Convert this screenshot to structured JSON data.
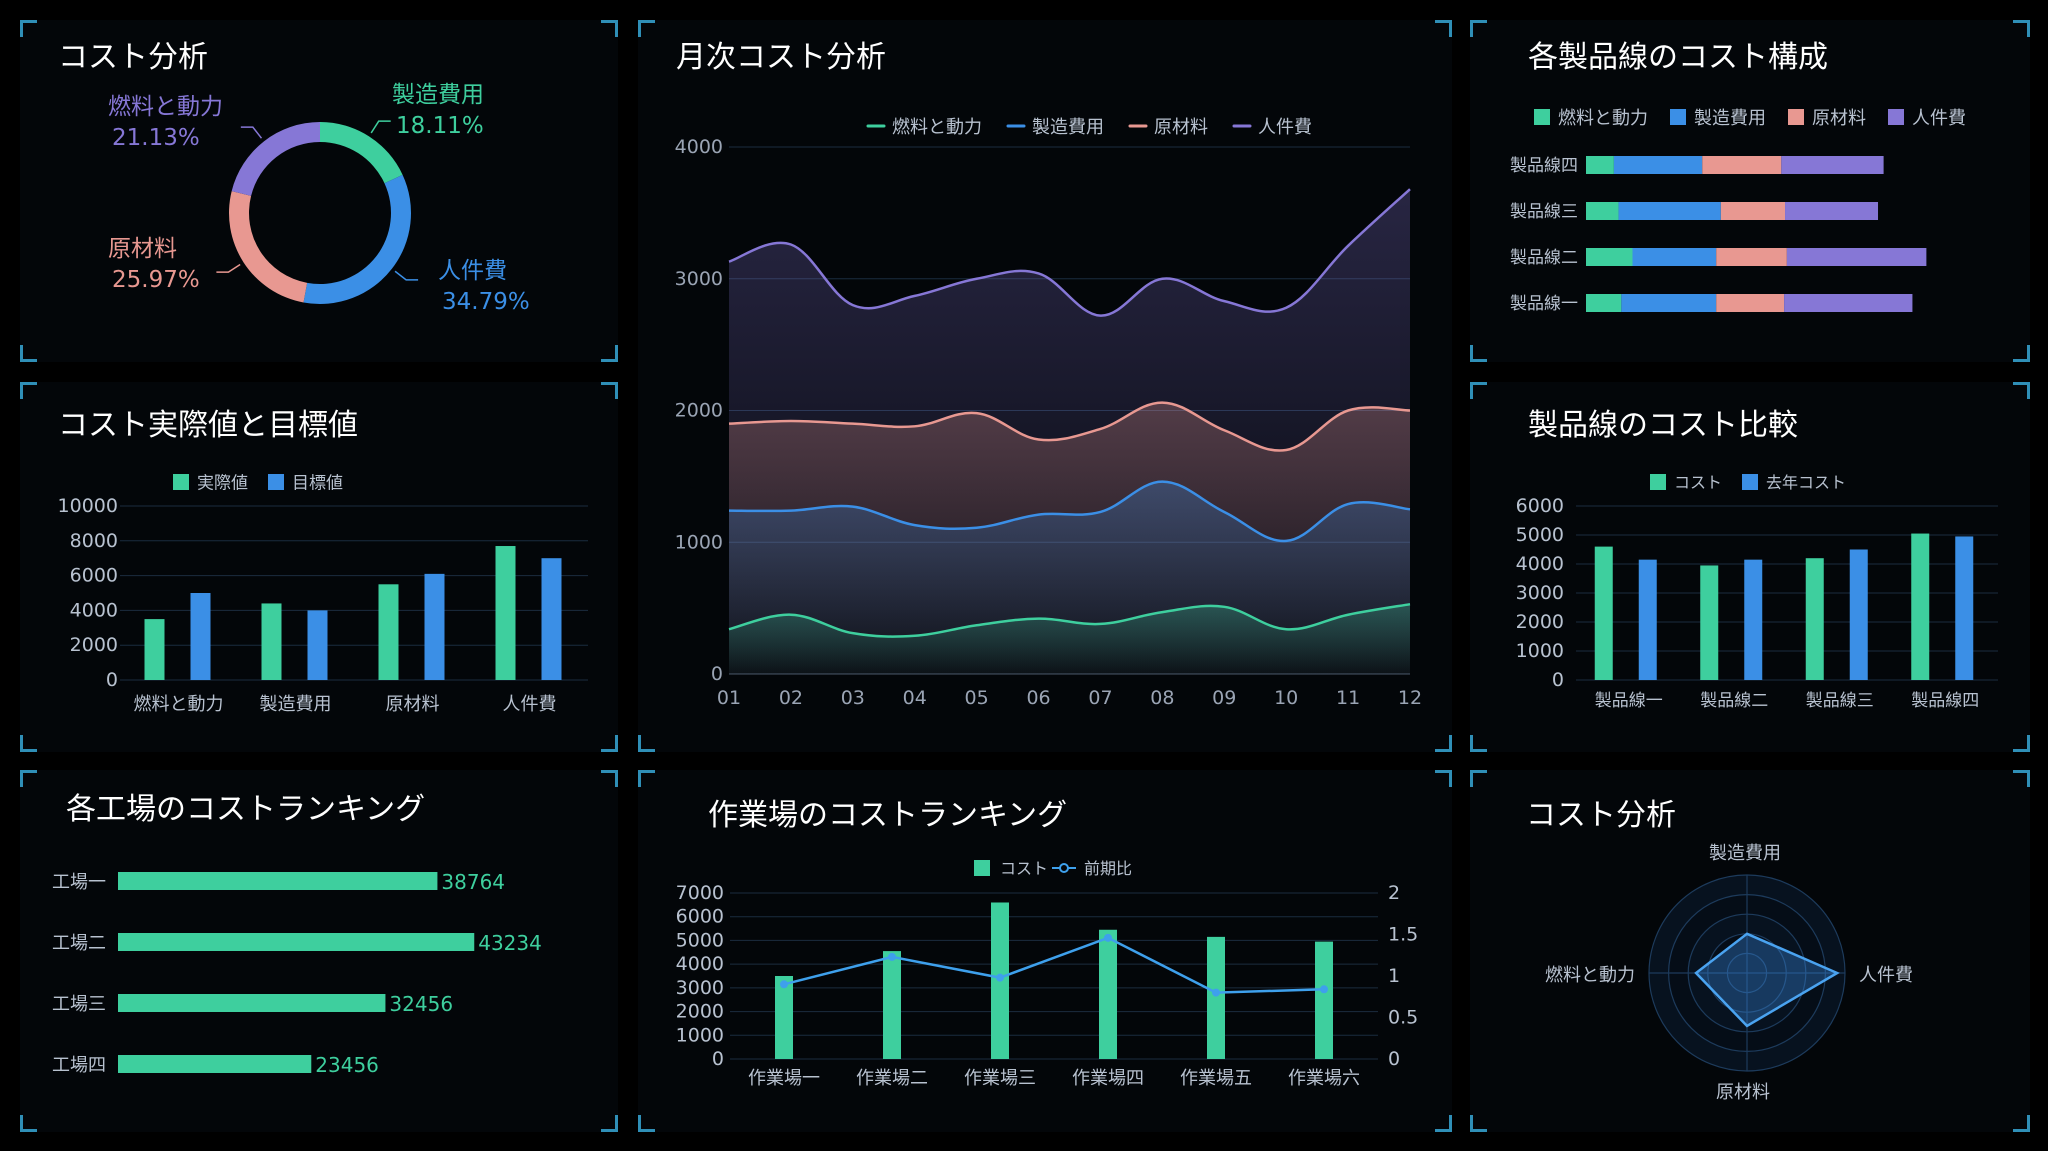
{
  "colors": {
    "fuel": "#3ecf9e",
    "mfg": "#3b8fe6",
    "raw": "#e89891",
    "labor": "#8677d6",
    "line": "#3ea0ec"
  },
  "panels": {
    "p1": {
      "title": "コスト分析"
    },
    "p2": {
      "title": "月次コスト分析"
    },
    "p3": {
      "title": "各製品線のコスト構成"
    },
    "p4": {
      "title": "コスト実際値と目標値"
    },
    "p5": {
      "title": "製品線のコスト比較"
    },
    "p6": {
      "title": "各工場のコストランキング"
    },
    "p7": {
      "title": "作業場のコストランキング"
    },
    "p8": {
      "title": "コスト分析"
    }
  },
  "chart_data": [
    {
      "id": "donut",
      "type": "pie",
      "title": "コスト分析",
      "slices": [
        {
          "name": "製造費用",
          "value": 18.11,
          "label": "18.11%"
        },
        {
          "name": "人件費",
          "value": 34.79,
          "label": "34.79%"
        },
        {
          "name": "原材料",
          "value": 25.97,
          "label": "25.97%"
        },
        {
          "name": "燃料と動力",
          "value": 21.13,
          "label": "21.13%"
        }
      ]
    },
    {
      "id": "monthly",
      "type": "area",
      "title": "月次コスト分析",
      "x": [
        "01",
        "02",
        "03",
        "04",
        "05",
        "06",
        "07",
        "08",
        "09",
        "10",
        "11",
        "12"
      ],
      "ylim": [
        0,
        4000
      ],
      "yticks": [
        0,
        1000,
        2000,
        3000,
        4000
      ],
      "series": [
        {
          "name": "燃料と動力",
          "values": [
            340,
            450,
            310,
            290,
            370,
            420,
            380,
            470,
            510,
            340,
            450,
            530
          ]
        },
        {
          "name": "製造費用",
          "values": [
            1240,
            1240,
            1270,
            1130,
            1110,
            1210,
            1230,
            1460,
            1230,
            1010,
            1290,
            1250
          ]
        },
        {
          "name": "原材料",
          "values": [
            1900,
            1920,
            1900,
            1880,
            1980,
            1780,
            1860,
            2060,
            1850,
            1700,
            2000,
            2000
          ]
        },
        {
          "name": "人件費",
          "values": [
            3130,
            3260,
            2800,
            2870,
            3000,
            3040,
            2720,
            3000,
            2830,
            2780,
            3250,
            3680
          ]
        }
      ]
    },
    {
      "id": "composition",
      "type": "bar",
      "orientation": "horizontal-stacked",
      "title": "各製品線のコスト構成",
      "categories": [
        "製品線四",
        "製品線三",
        "製品線二",
        "製品線一"
      ],
      "series": [
        {
          "name": "燃料と動力",
          "values": [
            300,
            350,
            500,
            380
          ]
        },
        {
          "name": "製造費用",
          "values": [
            950,
            1100,
            900,
            1020
          ]
        },
        {
          "name": "原材料",
          "values": [
            850,
            690,
            760,
            730
          ]
        },
        {
          "name": "人件費",
          "values": [
            1100,
            1000,
            1500,
            1380
          ]
        }
      ]
    },
    {
      "id": "actual_target",
      "type": "bar",
      "title": "コスト実際値と目標値",
      "categories": [
        "燃料と動力",
        "製造費用",
        "原材料",
        "人件費"
      ],
      "ylim": [
        0,
        10000
      ],
      "yticks": [
        0,
        2000,
        4000,
        6000,
        8000,
        10000
      ],
      "series": [
        {
          "name": "実際値",
          "values": [
            3500,
            4400,
            5500,
            7700
          ]
        },
        {
          "name": "目標値",
          "values": [
            5000,
            4000,
            6100,
            7000
          ]
        }
      ]
    },
    {
      "id": "product_compare",
      "type": "bar",
      "title": "製品線のコスト比較",
      "categories": [
        "製品線一",
        "製品線二",
        "製品線三",
        "製品線四"
      ],
      "ylim": [
        0,
        6000
      ],
      "yticks": [
        0,
        1000,
        2000,
        3000,
        4000,
        5000,
        6000
      ],
      "series": [
        {
          "name": "コスト",
          "values": [
            4600,
            3950,
            4200,
            5050
          ]
        },
        {
          "name": "去年コスト",
          "values": [
            4150,
            4150,
            4500,
            4950
          ]
        }
      ]
    },
    {
      "id": "factory_rank",
      "type": "bar",
      "orientation": "horizontal",
      "title": "各工場のコストランキング",
      "categories": [
        "工場一",
        "工場二",
        "工場三",
        "工場四"
      ],
      "values": [
        38764,
        43234,
        32456,
        23456
      ],
      "labels": [
        "38764",
        "43234",
        "32456",
        "23456"
      ]
    },
    {
      "id": "workshop_rank",
      "type": "bar",
      "title": "作業場のコストランキング",
      "categories": [
        "作業場一",
        "作業場二",
        "作業場三",
        "作業場四",
        "作業場五",
        "作業場六"
      ],
      "ylim": [
        0,
        7000
      ],
      "yticks": [
        0,
        1000,
        2000,
        3000,
        4000,
        5000,
        6000,
        7000
      ],
      "y2lim": [
        0,
        2
      ],
      "y2ticks": [
        "0",
        "0.5",
        "1",
        "1.5",
        "2"
      ],
      "series": [
        {
          "name": "コスト",
          "values": [
            3500,
            4550,
            6600,
            5450,
            5150,
            4950
          ]
        },
        {
          "name": "前期比",
          "type": "line",
          "values": [
            0.9,
            1.23,
            0.98,
            1.46,
            0.8,
            0.84
          ]
        }
      ]
    },
    {
      "id": "radar",
      "type": "radar",
      "title": "コスト分析",
      "indicators": [
        "製造費用",
        "人件費",
        "原材料",
        "燃料と動力"
      ],
      "values": [
        0.4,
        0.92,
        0.54,
        0.52
      ]
    }
  ]
}
